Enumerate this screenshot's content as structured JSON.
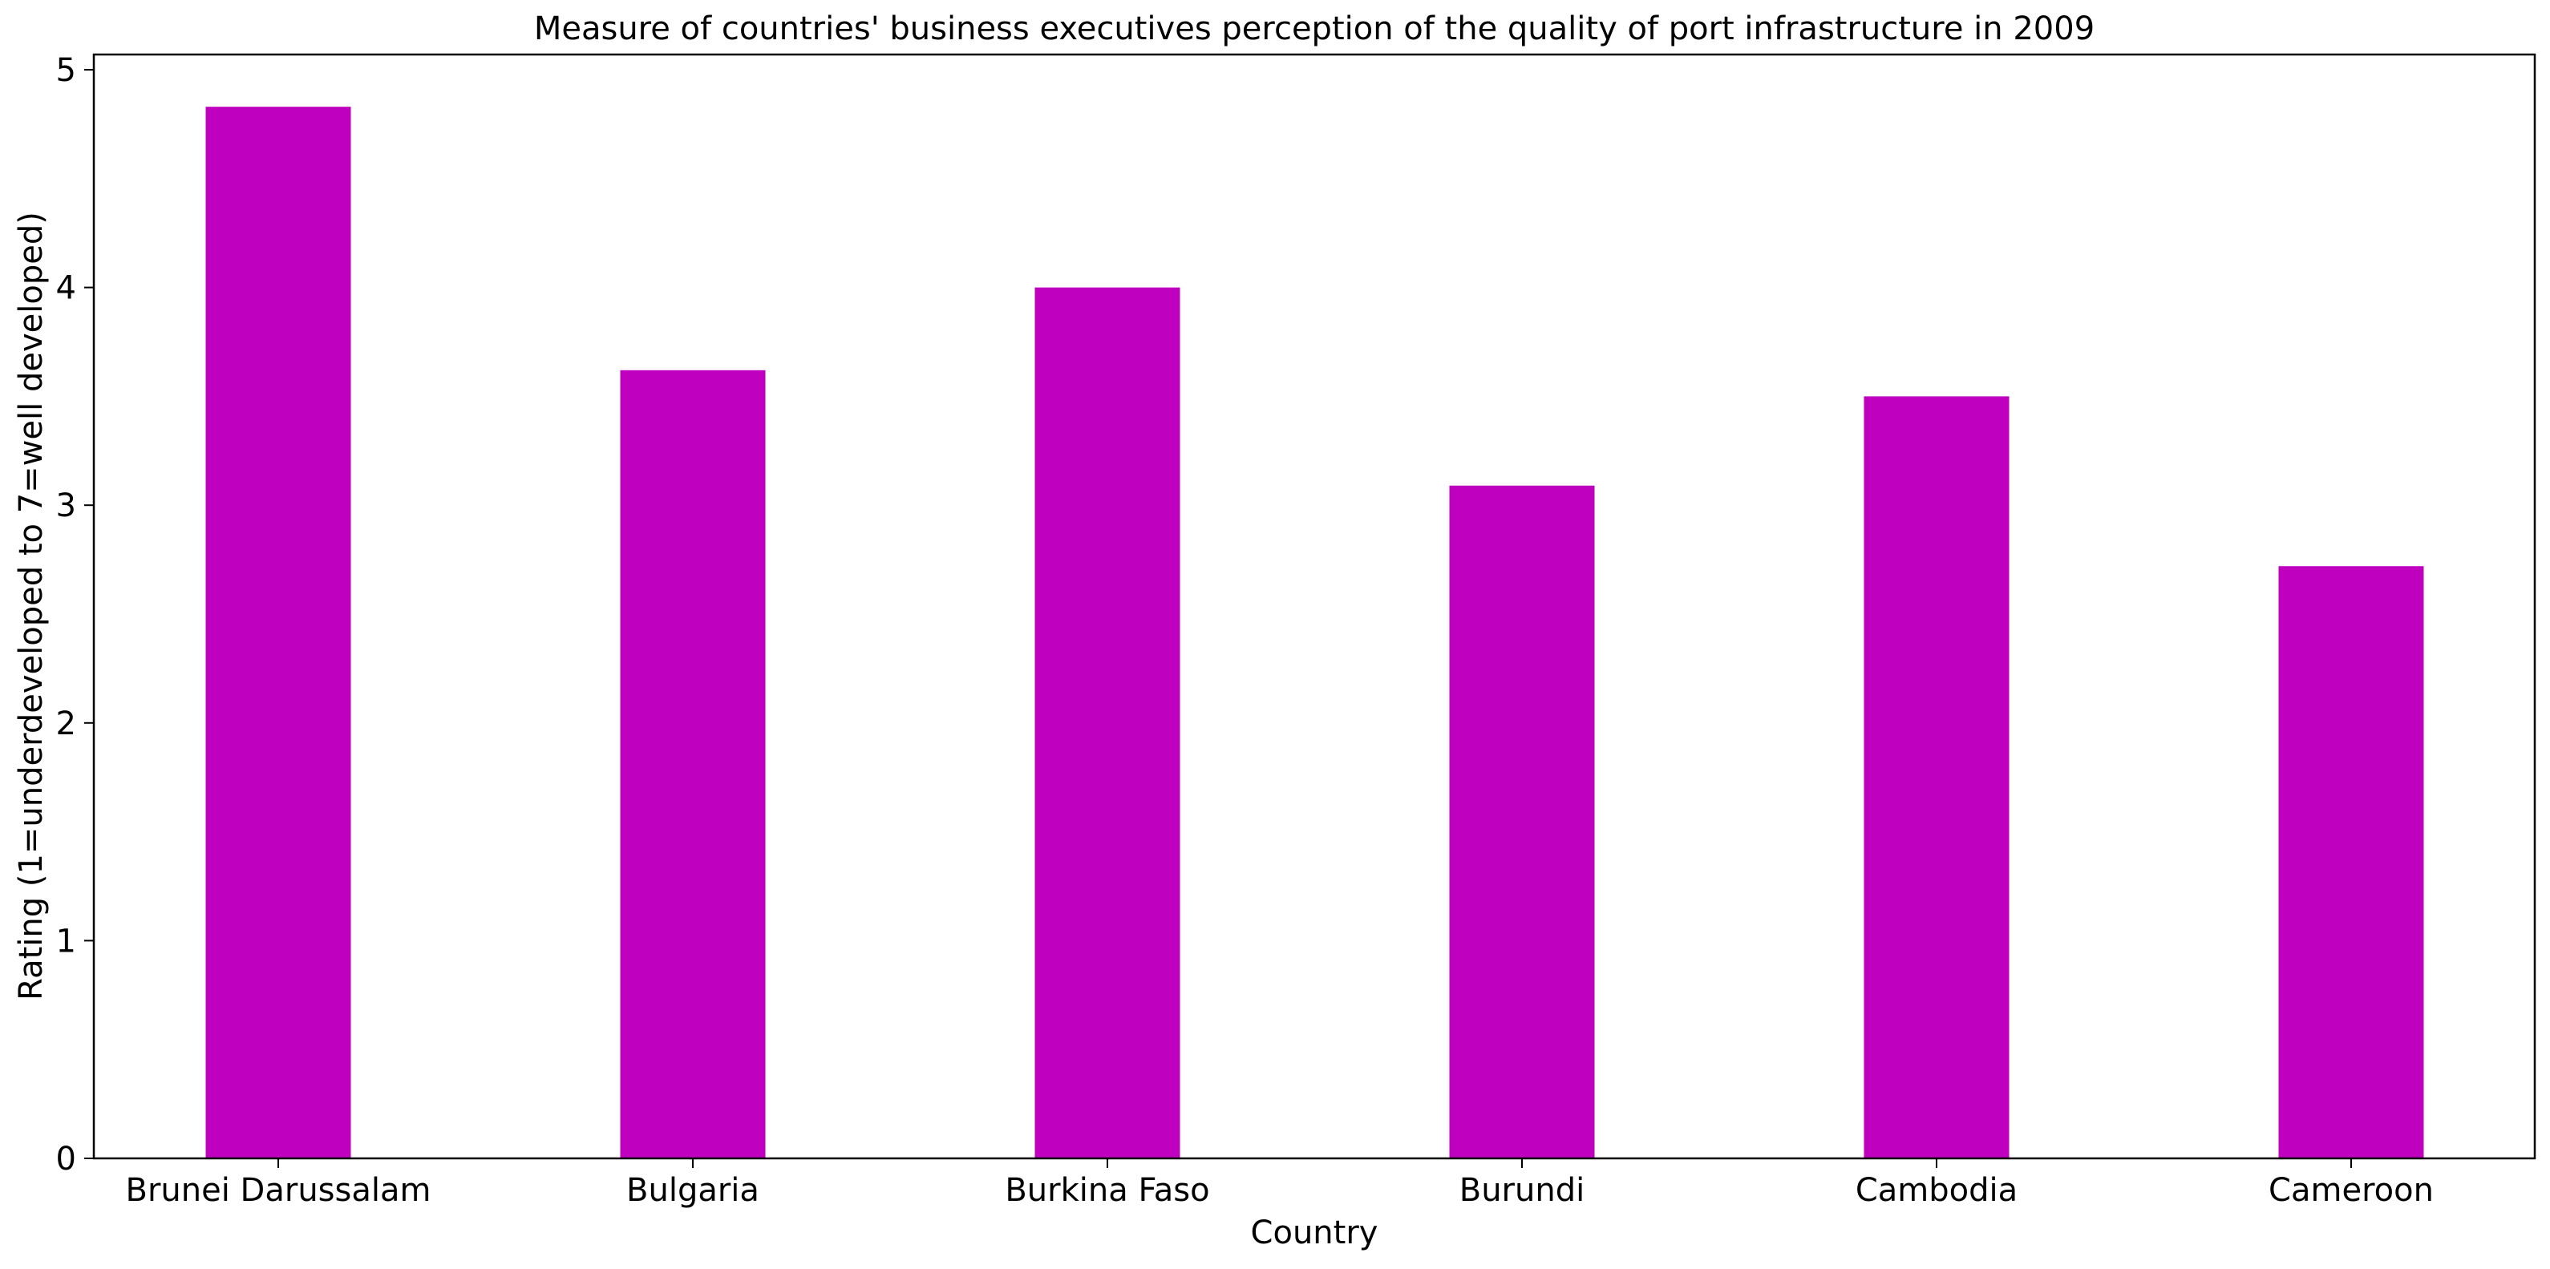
{
  "chart_data": {
    "type": "bar",
    "title": "Measure of countries' business executives perception of the quality of port infrastructure in 2009",
    "xlabel": "Country",
    "ylabel": "Rating (1=underdeveloped to 7=well developed)",
    "categories": [
      "Brunei Darussalam",
      "Bulgaria",
      "Burkina Faso",
      "Burundi",
      "Cambodia",
      "Cameroon"
    ],
    "series": [
      {
        "values": [
          4.83,
          3.62,
          4.0,
          3.09,
          3.5,
          2.72
        ]
      }
    ],
    "ylim": [
      0,
      5.07
    ],
    "yticks": [
      0,
      1,
      2,
      3,
      4,
      5
    ],
    "grid": false,
    "legend": "none",
    "bar_color": "#bf00bf",
    "axis_color": "#000000"
  }
}
